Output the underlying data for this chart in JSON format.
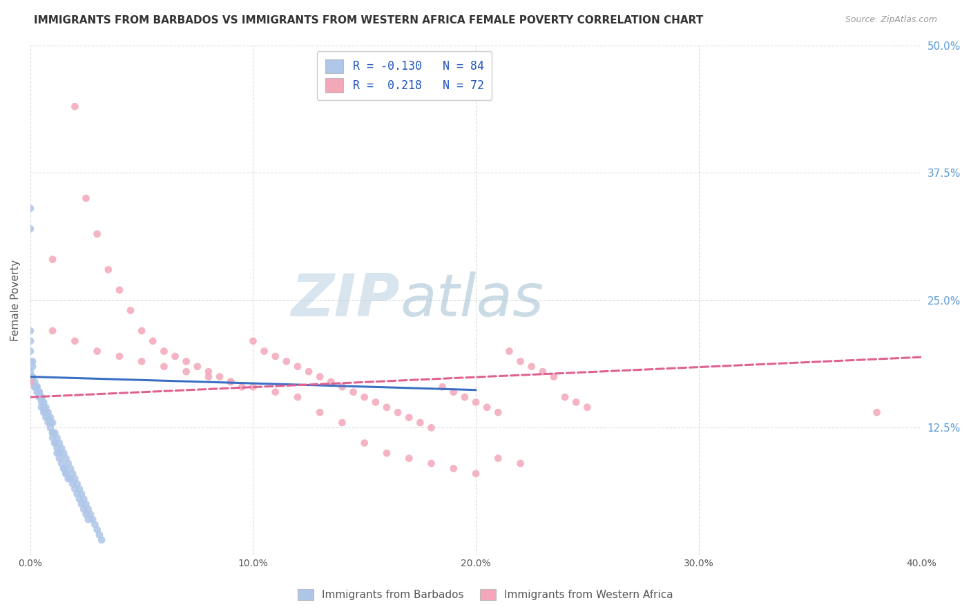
{
  "title": "IMMIGRANTS FROM BARBADOS VS IMMIGRANTS FROM WESTERN AFRICA FEMALE POVERTY CORRELATION CHART",
  "source": "Source: ZipAtlas.com",
  "ylabel": "Female Poverty",
  "legend": {
    "barbados": {
      "R": -0.13,
      "N": 84,
      "color": "#aec6e8",
      "line_color": "#4472c4"
    },
    "western_africa": {
      "R": 0.218,
      "N": 72,
      "color": "#f4a7b9",
      "line_color": "#e05c8a"
    }
  },
  "xlim": [
    0.0,
    0.4
  ],
  "ylim": [
    0.0,
    0.5
  ],
  "background_color": "#ffffff",
  "grid_color": "#cccccc",
  "title_color": "#333333",
  "right_label_color": "#5b9bd5",
  "barbados_x": [
    0.0,
    0.0,
    0.0,
    0.0,
    0.0,
    0.0,
    0.001,
    0.001,
    0.001,
    0.002,
    0.002,
    0.003,
    0.003,
    0.004,
    0.004,
    0.005,
    0.005,
    0.005,
    0.006,
    0.006,
    0.007,
    0.007,
    0.008,
    0.008,
    0.009,
    0.009,
    0.01,
    0.01,
    0.01,
    0.011,
    0.011,
    0.012,
    0.012,
    0.013,
    0.013,
    0.014,
    0.015,
    0.015,
    0.016,
    0.016,
    0.017,
    0.018,
    0.019,
    0.02,
    0.021,
    0.022,
    0.023,
    0.024,
    0.025,
    0.026,
    0.0,
    0.0,
    0.001,
    0.002,
    0.003,
    0.004,
    0.005,
    0.006,
    0.007,
    0.008,
    0.009,
    0.01,
    0.011,
    0.012,
    0.013,
    0.014,
    0.015,
    0.016,
    0.017,
    0.018,
    0.019,
    0.02,
    0.021,
    0.022,
    0.023,
    0.024,
    0.025,
    0.026,
    0.027,
    0.028,
    0.029,
    0.03,
    0.031,
    0.032
  ],
  "barbados_y": [
    0.34,
    0.32,
    0.22,
    0.21,
    0.2,
    0.19,
    0.19,
    0.185,
    0.175,
    0.17,
    0.165,
    0.165,
    0.16,
    0.16,
    0.155,
    0.155,
    0.15,
    0.145,
    0.145,
    0.14,
    0.14,
    0.135,
    0.135,
    0.13,
    0.13,
    0.125,
    0.12,
    0.12,
    0.115,
    0.11,
    0.11,
    0.105,
    0.1,
    0.1,
    0.095,
    0.09,
    0.085,
    0.085,
    0.08,
    0.08,
    0.075,
    0.075,
    0.07,
    0.065,
    0.06,
    0.055,
    0.05,
    0.045,
    0.04,
    0.035,
    0.18,
    0.175,
    0.17,
    0.165,
    0.165,
    0.16,
    0.155,
    0.15,
    0.145,
    0.14,
    0.135,
    0.13,
    0.12,
    0.115,
    0.11,
    0.105,
    0.1,
    0.095,
    0.09,
    0.085,
    0.08,
    0.075,
    0.07,
    0.065,
    0.06,
    0.055,
    0.05,
    0.045,
    0.04,
    0.035,
    0.03,
    0.025,
    0.02,
    0.015
  ],
  "western_x": [
    0.0,
    0.01,
    0.02,
    0.025,
    0.03,
    0.035,
    0.04,
    0.045,
    0.05,
    0.055,
    0.06,
    0.065,
    0.07,
    0.075,
    0.08,
    0.085,
    0.09,
    0.095,
    0.1,
    0.105,
    0.11,
    0.115,
    0.12,
    0.125,
    0.13,
    0.135,
    0.14,
    0.145,
    0.15,
    0.155,
    0.16,
    0.165,
    0.17,
    0.175,
    0.18,
    0.185,
    0.19,
    0.195,
    0.2,
    0.205,
    0.21,
    0.215,
    0.22,
    0.225,
    0.23,
    0.235,
    0.24,
    0.245,
    0.25,
    0.38,
    0.01,
    0.02,
    0.03,
    0.04,
    0.05,
    0.06,
    0.07,
    0.08,
    0.09,
    0.1,
    0.11,
    0.12,
    0.13,
    0.14,
    0.15,
    0.16,
    0.17,
    0.18,
    0.19,
    0.2,
    0.21,
    0.22
  ],
  "western_y": [
    0.17,
    0.29,
    0.44,
    0.35,
    0.315,
    0.28,
    0.26,
    0.24,
    0.22,
    0.21,
    0.2,
    0.195,
    0.19,
    0.185,
    0.18,
    0.175,
    0.17,
    0.165,
    0.21,
    0.2,
    0.195,
    0.19,
    0.185,
    0.18,
    0.175,
    0.17,
    0.165,
    0.16,
    0.155,
    0.15,
    0.145,
    0.14,
    0.135,
    0.13,
    0.125,
    0.165,
    0.16,
    0.155,
    0.15,
    0.145,
    0.14,
    0.2,
    0.19,
    0.185,
    0.18,
    0.175,
    0.155,
    0.15,
    0.145,
    0.14,
    0.22,
    0.21,
    0.2,
    0.195,
    0.19,
    0.185,
    0.18,
    0.175,
    0.17,
    0.165,
    0.16,
    0.155,
    0.14,
    0.13,
    0.11,
    0.1,
    0.095,
    0.09,
    0.085,
    0.08,
    0.095,
    0.09
  ]
}
